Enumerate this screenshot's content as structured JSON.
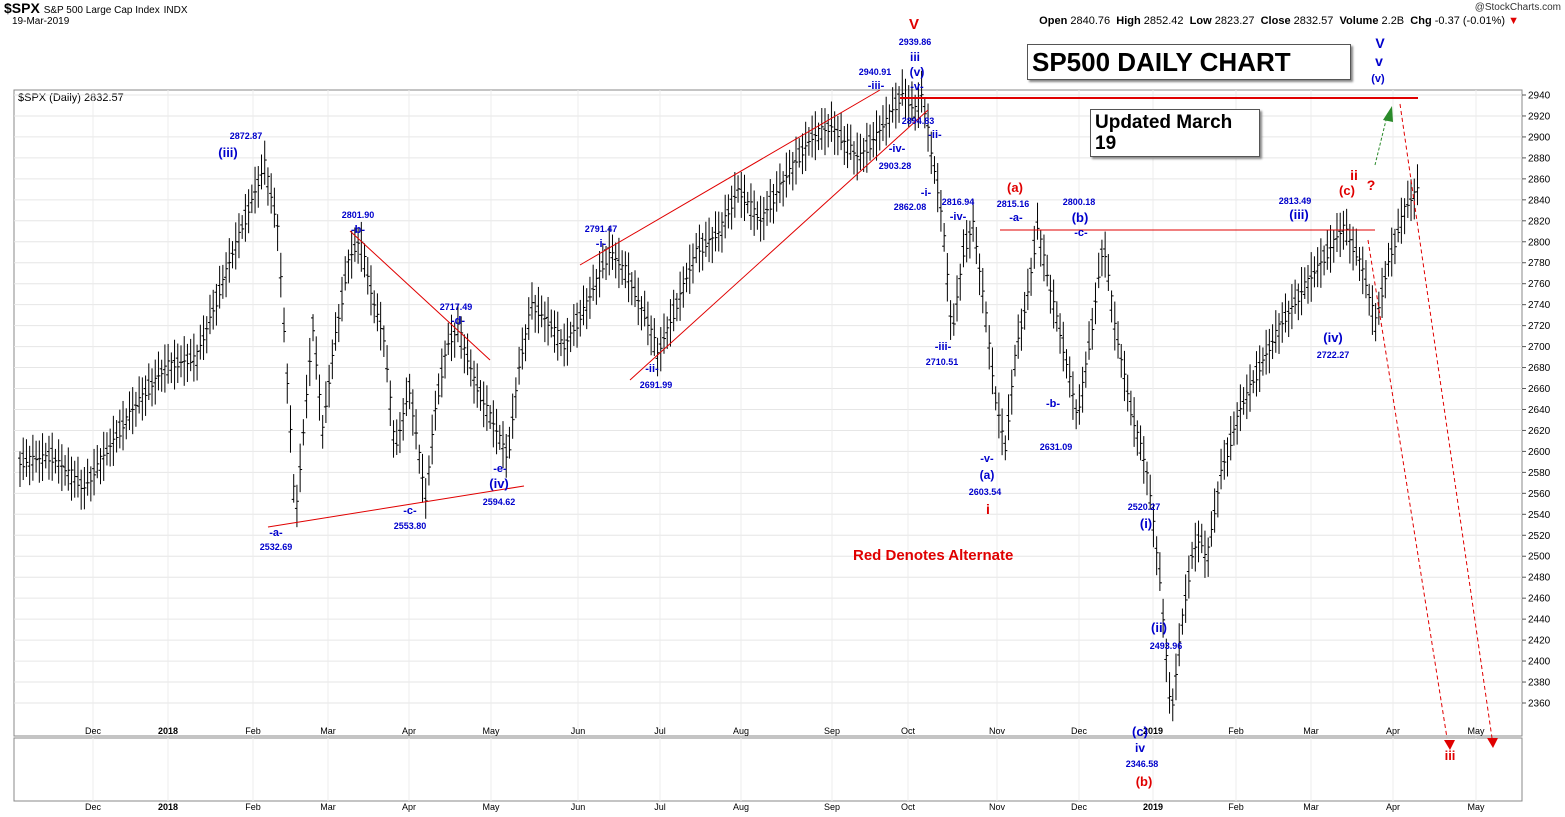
{
  "header": {
    "symbol": "$SPX",
    "name": "S&P 500 Large Cap Index",
    "exchange": "INDX",
    "date": "19-Mar-2019",
    "series_label": "$SPX (Daily) 2832.57",
    "credit": "@StockCharts.com",
    "ohlc": {
      "open_label": "Open",
      "open": "2840.76",
      "high_label": "High",
      "high": "2852.42",
      "low_label": "Low",
      "low": "2823.27",
      "close_label": "Close",
      "close": "2832.57",
      "volume_label": "Volume",
      "volume": "2.2B",
      "chg_label": "Chg",
      "chg": "-0.37 (-0.01%)"
    }
  },
  "boxes": {
    "title": "SP500 DAILY CHART",
    "updated": "Updated March 19"
  },
  "note": "Red Denotes Alternate",
  "colors": {
    "wave": "#0000cc",
    "alternate": "#e00000",
    "projection": "#2a8a2a",
    "bars": "#000000"
  },
  "chart_data": {
    "type": "ohlc",
    "title": "",
    "ylim": [
      2340,
      2950
    ],
    "y_ticks": [
      2360,
      2380,
      2400,
      2420,
      2440,
      2460,
      2480,
      2500,
      2520,
      2540,
      2560,
      2580,
      2600,
      2620,
      2640,
      2660,
      2680,
      2700,
      2720,
      2740,
      2760,
      2780,
      2800,
      2820,
      2840,
      2860,
      2880,
      2900,
      2920,
      2940
    ],
    "x_labels": [
      "Dec",
      "2018",
      "Feb",
      "Mar",
      "Apr",
      "May",
      "Jun",
      "Jul",
      "Aug",
      "Sep",
      "Oct",
      "Nov",
      "Dec",
      "2019",
      "Feb",
      "Mar",
      "Apr",
      "May"
    ],
    "x_label_positions": [
      12,
      13,
      15,
      17,
      19,
      21,
      23,
      25,
      27,
      29,
      31,
      33,
      35,
      37,
      39,
      41,
      43,
      45
    ],
    "price_path": [
      [
        0,
        2590
      ],
      [
        2,
        2595
      ],
      [
        4,
        2565
      ],
      [
        7,
        2640
      ],
      [
        9,
        2680
      ],
      [
        11,
        2690
      ],
      [
        13,
        2780
      ],
      [
        15.2,
        2872.87
      ],
      [
        16,
        2815
      ],
      [
        16.8,
        2620
      ],
      [
        17.1,
        2532.69
      ],
      [
        18.2,
        2720
      ],
      [
        18.8,
        2620
      ],
      [
        19.5,
        2700
      ],
      [
        20.4,
        2782
      ],
      [
        21.1,
        2801.9
      ],
      [
        22,
        2740
      ],
      [
        22.6,
        2710
      ],
      [
        23.3,
        2600
      ],
      [
        24.2,
        2660
      ],
      [
        25.2,
        2553.8
      ],
      [
        25.8,
        2640
      ],
      [
        26.5,
        2700
      ],
      [
        27.2,
        2717.49
      ],
      [
        28.4,
        2660
      ],
      [
        29.3,
        2630
      ],
      [
        30.3,
        2594.62
      ],
      [
        31,
        2680
      ],
      [
        31.8,
        2740
      ],
      [
        33,
        2720
      ],
      [
        33.8,
        2700
      ],
      [
        35.2,
        2740
      ],
      [
        36.6,
        2791.47
      ],
      [
        37.7,
        2770
      ],
      [
        38.5,
        2740
      ],
      [
        39.1,
        2720
      ],
      [
        39.6,
        2691.99
      ],
      [
        40.8,
        2740
      ],
      [
        42,
        2790
      ],
      [
        43.5,
        2810
      ],
      [
        44.6,
        2850
      ],
      [
        46,
        2820
      ],
      [
        47.5,
        2860
      ],
      [
        49.2,
        2900
      ],
      [
        50.4,
        2910
      ],
      [
        52.1,
        2880
      ],
      [
        53.3,
        2903.28
      ],
      [
        54,
        2920
      ],
      [
        54.8,
        2940.91
      ],
      [
        55.6,
        2925
      ],
      [
        56,
        2939.86
      ],
      [
        56.6,
        2894.83
      ],
      [
        56.3,
        2905
      ],
      [
        56.9,
        2862.08
      ],
      [
        57.3,
        2820
      ],
      [
        57.9,
        2710.51
      ],
      [
        58.6,
        2790
      ],
      [
        59.2,
        2816.94
      ],
      [
        59.9,
        2740
      ],
      [
        60.6,
        2650
      ],
      [
        61.2,
        2603.54
      ],
      [
        61.9,
        2700
      ],
      [
        62.5,
        2740
      ],
      [
        63.2,
        2815.16
      ],
      [
        63.9,
        2760
      ],
      [
        64.8,
        2700
      ],
      [
        65.7,
        2631.09
      ],
      [
        66.6,
        2720
      ],
      [
        67.3,
        2800.18
      ],
      [
        68,
        2720
      ],
      [
        69,
        2640
      ],
      [
        70,
        2580
      ],
      [
        70.8,
        2480
      ],
      [
        71.5,
        2346.58
      ],
      [
        72.2,
        2440
      ],
      [
        72.8,
        2500
      ],
      [
        73.3,
        2520.27
      ],
      [
        73.7,
        2493.96
      ],
      [
        74.6,
        2580
      ],
      [
        75.8,
        2640
      ],
      [
        77,
        2680
      ],
      [
        78.3,
        2720
      ],
      [
        79.5,
        2750
      ],
      [
        80.8,
        2780
      ],
      [
        82.2,
        2813.49
      ],
      [
        83.3,
        2780
      ],
      [
        84.2,
        2722.27
      ],
      [
        85,
        2780
      ],
      [
        86,
        2830
      ],
      [
        86.9,
        2852.42
      ]
    ],
    "annotations": {
      "blue": [
        "2872.87",
        "(iii)",
        "2532.69",
        "-a-",
        "2801.90",
        "-b-",
        "2553.80",
        "-c-",
        "2717.49",
        "-d-",
        "-e-",
        "(iv)",
        "2594.62",
        "2791.47",
        "-i-",
        "2691.99",
        "-ii-",
        "2940.91",
        "-iii-",
        "2903.28",
        "-iv-",
        "2939.86",
        "iii",
        "(v)",
        "-v-",
        "2894.83",
        "-ii-",
        "-i-",
        "2862.08",
        "2816.94",
        "-iv-",
        "-iii-",
        "2710.51",
        "2815.16",
        "-a-",
        "2800.18",
        "(b)",
        "-c-",
        "-b-",
        "2631.09",
        "-v-",
        "(a)",
        "2603.54",
        "2520.27",
        "(i)",
        "(ii)",
        "2493.96",
        "(c)",
        "iv",
        "2346.58",
        "2813.49",
        "(iii)",
        "(iv)",
        "2722.27",
        "V",
        "v",
        "(v)"
      ],
      "red": [
        "V",
        "(a)",
        "i",
        "(b)",
        "ii",
        "(c)",
        "?",
        "iii"
      ]
    }
  }
}
